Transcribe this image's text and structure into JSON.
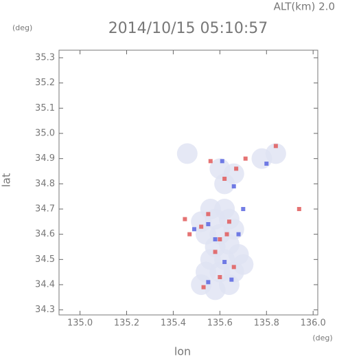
{
  "chart_data": {
    "type": "scatter",
    "title": "2014/10/15 05:10:57",
    "altitude_label": "ALT(km) 2.0",
    "y_unit": "(deg)",
    "x_unit": "(deg)",
    "xlabel": "lon",
    "ylabel": "lat",
    "xlim": [
      134.91,
      136.02
    ],
    "ylim": [
      34.28,
      35.33
    ],
    "xticks": [
      {
        "value": 135,
        "label": "135.0"
      },
      135.2,
      135.4,
      135.6,
      135.8,
      {
        "value": 136,
        "label": "136.0"
      }
    ],
    "yticks": [
      34.3,
      34.4,
      34.5,
      34.6,
      34.7,
      34.8,
      34.9,
      {
        "value": 35,
        "label": "35.0"
      },
      35.1,
      35.2,
      35.3
    ],
    "series": [
      {
        "color": "#dfe2f2",
        "x": [
          135.52,
          135.58,
          135.64,
          135.54,
          135.6,
          135.66,
          135.7,
          135.56,
          135.62,
          135.68,
          135.58,
          135.64,
          135.54,
          135.6,
          135.66,
          135.52,
          135.58,
          135.64,
          135.56,
          135.62,
          135.62,
          135.66,
          135.6,
          135.46,
          135.84,
          135.78
        ],
        "y": [
          34.4,
          34.38,
          34.4,
          34.45,
          34.45,
          34.45,
          34.48,
          34.5,
          34.5,
          34.52,
          34.55,
          34.56,
          34.6,
          34.6,
          34.62,
          34.65,
          34.66,
          34.66,
          34.7,
          34.7,
          34.8,
          34.84,
          34.86,
          34.92,
          34.92,
          34.9
        ]
      },
      {
        "color": "#e05a5a",
        "x": [
          135.6,
          135.63,
          135.58,
          135.66,
          135.52,
          135.47,
          135.55,
          135.62,
          135.67,
          135.84,
          135.71,
          135.56,
          135.45,
          135.6,
          135.53,
          135.94,
          135.64
        ],
        "y": [
          34.58,
          34.6,
          34.53,
          34.47,
          34.63,
          34.6,
          34.68,
          34.82,
          34.86,
          34.95,
          34.9,
          34.89,
          34.66,
          34.43,
          34.39,
          34.7,
          34.65
        ]
      },
      {
        "color": "#5a66e0",
        "x": [
          135.55,
          135.68,
          135.62,
          135.55,
          135.49,
          135.66,
          135.61,
          135.8,
          135.7,
          135.58,
          135.65
        ],
        "y": [
          34.64,
          34.6,
          34.49,
          34.41,
          34.62,
          34.79,
          34.89,
          34.88,
          34.7,
          34.58,
          34.42
        ]
      }
    ]
  }
}
